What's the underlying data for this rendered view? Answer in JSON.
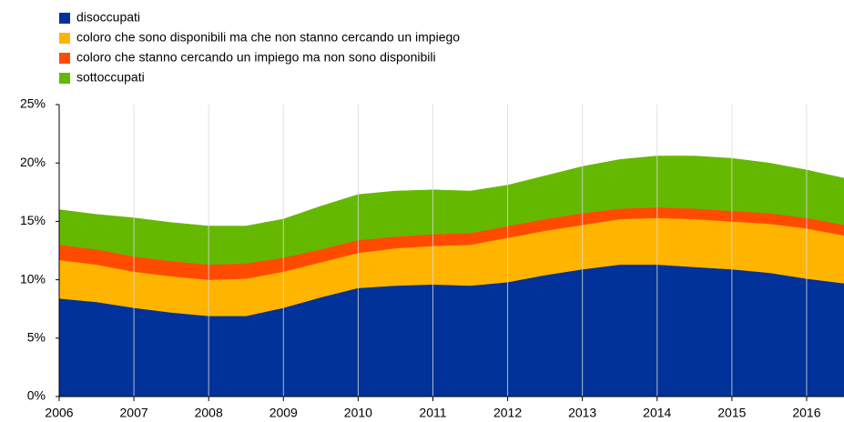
{
  "chart_data": {
    "type": "stacked_area",
    "x": [
      2006,
      2006.5,
      2007,
      2007.5,
      2008,
      2008.5,
      2009,
      2009.5,
      2010,
      2010.5,
      2011,
      2011.5,
      2012,
      2012.5,
      2013,
      2013.5,
      2014,
      2014.5,
      2015,
      2015.5,
      2016,
      2016.5
    ],
    "series": [
      {
        "name": "disoccupati",
        "color": "#003299",
        "values": [
          8.4,
          8.1,
          7.6,
          7.2,
          6.9,
          6.9,
          7.6,
          8.5,
          9.3,
          9.5,
          9.6,
          9.5,
          9.8,
          10.4,
          10.9,
          11.3,
          11.3,
          11.1,
          10.9,
          10.6,
          10.1,
          9.7
        ]
      },
      {
        "name": "coloro che sono disponibili ma che non stanno cercando un impiego",
        "color": "#ffb400",
        "values": [
          3.3,
          3.2,
          3.1,
          3.1,
          3.1,
          3.2,
          3.1,
          3.0,
          3.0,
          3.2,
          3.3,
          3.5,
          3.8,
          3.8,
          3.8,
          3.9,
          4.0,
          4.1,
          4.1,
          4.2,
          4.3,
          4.1
        ]
      },
      {
        "name": "coloro che stanno cercando un impiego ma non sono disponibili",
        "color": "#ff4b00",
        "values": [
          1.3,
          1.3,
          1.3,
          1.3,
          1.3,
          1.3,
          1.2,
          1.1,
          1.1,
          1.0,
          1.0,
          1.0,
          1.0,
          1.0,
          1.0,
          0.9,
          0.9,
          0.9,
          0.9,
          0.9,
          0.9,
          0.9
        ]
      },
      {
        "name": "sottoccupati",
        "color": "#65b800",
        "values": [
          3.0,
          3.0,
          3.3,
          3.3,
          3.3,
          3.2,
          3.3,
          3.7,
          3.9,
          3.9,
          3.8,
          3.6,
          3.5,
          3.7,
          4.0,
          4.2,
          4.4,
          4.5,
          4.5,
          4.3,
          4.1,
          4.0
        ]
      }
    ],
    "xlim": [
      2006,
      2016.5
    ],
    "xticks": [
      2006,
      2007,
      2008,
      2009,
      2010,
      2011,
      2012,
      2013,
      2014,
      2015,
      2016
    ],
    "ylim": [
      0,
      25
    ],
    "yticks": [
      {
        "value": 0,
        "label": "0%"
      },
      {
        "value": 5,
        "label": "5%"
      },
      {
        "value": 10,
        "label": "10%"
      },
      {
        "value": 15,
        "label": "15%"
      },
      {
        "value": 20,
        "label": "20%"
      },
      {
        "value": 25,
        "label": "25%"
      }
    ],
    "grid": "x"
  }
}
